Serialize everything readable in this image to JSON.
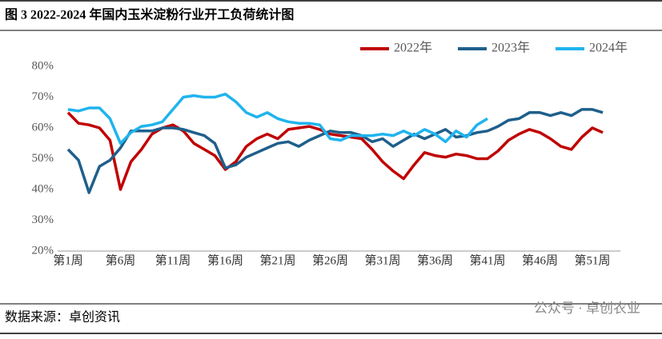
{
  "chart_data": {
    "type": "line",
    "title": "图 3  2022-2024 年国内玉米淀粉行业开工负荷统计图",
    "source": "数据来源：卓创资讯",
    "watermark": "公众号 · 卓创农业",
    "categories": [
      "第1周",
      null,
      null,
      null,
      null,
      "第6周",
      null,
      null,
      null,
      null,
      "第11周",
      null,
      null,
      null,
      null,
      "第16周",
      null,
      null,
      null,
      null,
      "第21周",
      null,
      null,
      null,
      null,
      "第26周",
      null,
      null,
      null,
      null,
      "第31周",
      null,
      null,
      null,
      null,
      "第36周",
      null,
      null,
      null,
      null,
      "第41周",
      null,
      null,
      null,
      null,
      "第46周",
      null,
      null,
      null,
      null,
      "第51周",
      null
    ],
    "ylim": [
      20,
      80
    ],
    "yticks": [
      {
        "value": 20,
        "label": "20%"
      },
      {
        "value": 30,
        "label": "30%"
      },
      {
        "value": 40,
        "label": "40%"
      },
      {
        "value": 50,
        "label": "50%"
      },
      {
        "value": 60,
        "label": "60%"
      },
      {
        "value": 70,
        "label": "70%"
      },
      {
        "value": 80,
        "label": "80%"
      }
    ],
    "grid": false,
    "legend": "top-right",
    "series": [
      {
        "name": "2022年",
        "color": "#c00000",
        "values": [
          65,
          61.5,
          61,
          60,
          56,
          40,
          49,
          53,
          58,
          60,
          61,
          59,
          55,
          53,
          51,
          46.5,
          49,
          54,
          56.5,
          58,
          56.5,
          59.5,
          60,
          60.5,
          59.5,
          58,
          57.5,
          57,
          56.5,
          53,
          49,
          46,
          43.5,
          48,
          52,
          51,
          50.5,
          51.5,
          51,
          50,
          50,
          52.5,
          56,
          58,
          59.5,
          58.5,
          56.5,
          54,
          53,
          57,
          60,
          58.5
        ]
      },
      {
        "name": "2023年",
        "color": "#1f5f8b",
        "values": [
          53,
          49.5,
          39,
          47.5,
          49.5,
          53.5,
          59,
          59,
          59,
          60,
          60,
          59.5,
          58.5,
          57.5,
          55,
          47,
          48,
          50.5,
          52,
          53.5,
          55,
          55.5,
          54,
          56,
          57.5,
          59,
          58.5,
          58.5,
          57.5,
          55.5,
          56.5,
          54,
          56,
          58,
          56.5,
          58,
          59.5,
          57,
          57.5,
          58.5,
          59,
          60.5,
          62.5,
          63,
          65,
          65,
          64,
          65,
          64,
          66,
          66,
          65
        ]
      },
      {
        "name": "2024年",
        "color": "#1fb4ee",
        "values": [
          66,
          65.5,
          66.5,
          66.5,
          63,
          55,
          58.5,
          60.5,
          61,
          62,
          66,
          70,
          70.5,
          70,
          70,
          71,
          68.5,
          65,
          63.5,
          65,
          63,
          62,
          61.5,
          61.5,
          61,
          56.5,
          56,
          57.5,
          57.5,
          57.5,
          58,
          57.5,
          59,
          57.5,
          59.5,
          58,
          55.5,
          59,
          57,
          61,
          63,
          null,
          null,
          null,
          null,
          null,
          null,
          null,
          null,
          null,
          null,
          null
        ]
      }
    ]
  }
}
